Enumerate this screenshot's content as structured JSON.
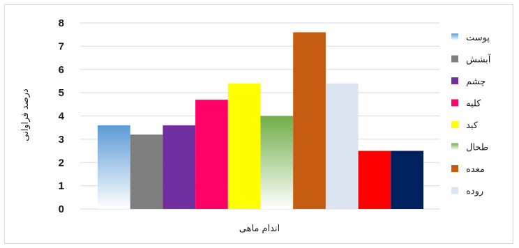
{
  "chart_data": {
    "type": "bar",
    "xlabel": "اندام ماهی",
    "ylabel": "درصد فراوانی",
    "ylim": [
      0,
      8
    ],
    "yticks": [
      0,
      1,
      2,
      3,
      4,
      5,
      6,
      7,
      8
    ],
    "grid": true,
    "legend_position": "right",
    "series": [
      {
        "name": "پوست",
        "value": 3.6,
        "color": "#5b9bd5",
        "gradient": true
      },
      {
        "name": "آبشش",
        "value": 3.2,
        "color": "#7f7f7f",
        "gradient": false
      },
      {
        "name": "چشم",
        "value": 3.6,
        "color": "#7030a0",
        "gradient": false
      },
      {
        "name": "کلیه",
        "value": 4.7,
        "color": "#ff0066",
        "gradient": false
      },
      {
        "name": "کبد",
        "value": 5.4,
        "color": "#ffff00",
        "gradient": false
      },
      {
        "name": "طحال",
        "value": 4.0,
        "color": "#70ad47",
        "gradient": true
      },
      {
        "name": "معده",
        "value": 7.6,
        "color": "#c55a11",
        "gradient": false
      },
      {
        "name": "روده",
        "value": 5.4,
        "color": "#dce6f2",
        "gradient": false
      },
      {
        "name": "",
        "value": 2.5,
        "color": "#ff0000",
        "gradient": false
      },
      {
        "name": "",
        "value": 2.5,
        "color": "#002060",
        "gradient": false
      }
    ]
  }
}
